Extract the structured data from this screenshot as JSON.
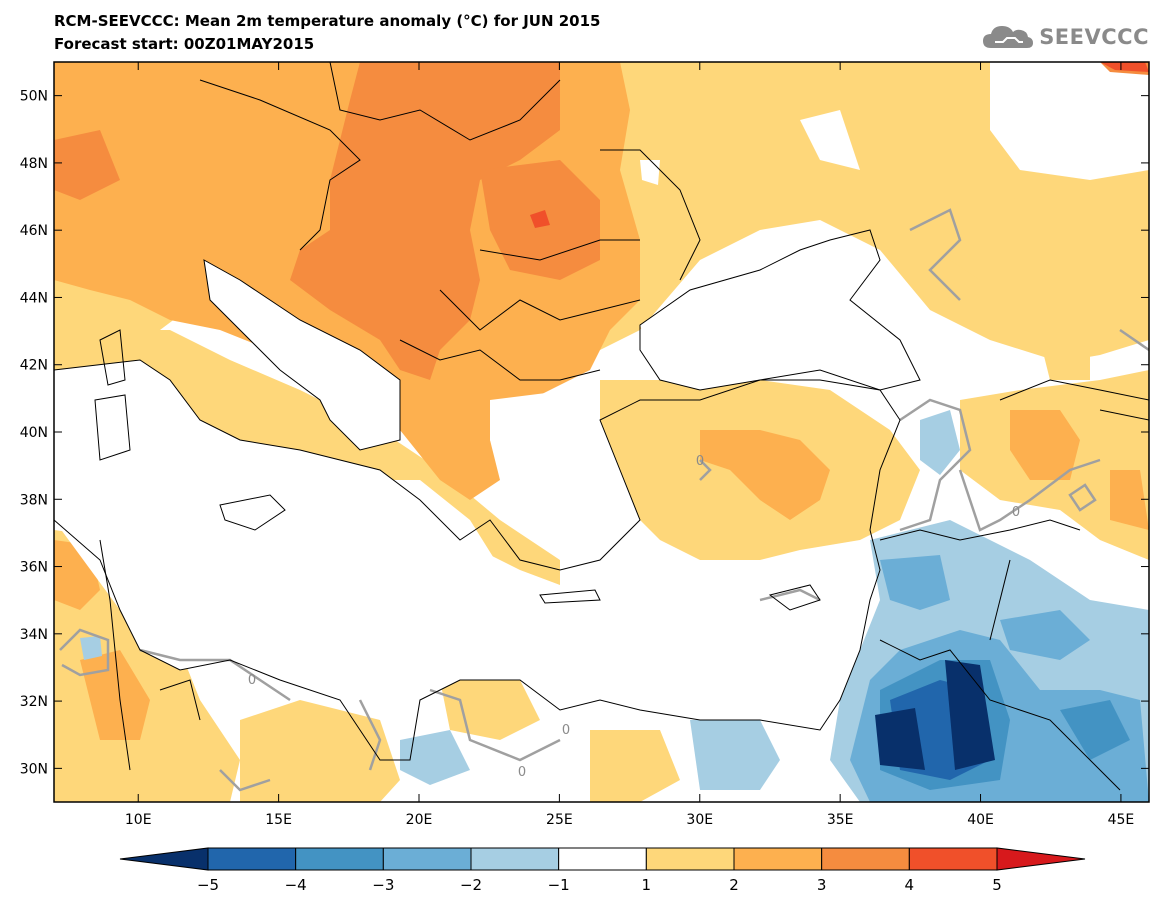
{
  "title": "RCM-SEEVCCC: Mean 2m temperature anomaly (°C) for JUN 2015",
  "subtitle": "Forecast start: 00Z01MAY2015",
  "logo_text": "SEEVCCC",
  "logo_icon": "cloud-icon",
  "map": {
    "lon_range": [
      7,
      46
    ],
    "lat_range": [
      29,
      51
    ],
    "lat_ticks": [
      {
        "value": 50,
        "label": "50N"
      },
      {
        "value": 48,
        "label": "48N"
      },
      {
        "value": 46,
        "label": "46N"
      },
      {
        "value": 44,
        "label": "44N"
      },
      {
        "value": 42,
        "label": "42N"
      },
      {
        "value": 40,
        "label": "40N"
      },
      {
        "value": 38,
        "label": "38N"
      },
      {
        "value": 36,
        "label": "36N"
      },
      {
        "value": 34,
        "label": "34N"
      },
      {
        "value": 32,
        "label": "32N"
      },
      {
        "value": 30,
        "label": "30N"
      }
    ],
    "lon_ticks": [
      {
        "value": 10,
        "label": "10E"
      },
      {
        "value": 15,
        "label": "15E"
      },
      {
        "value": 20,
        "label": "20E"
      },
      {
        "value": 25,
        "label": "25E"
      },
      {
        "value": 30,
        "label": "30E"
      },
      {
        "value": 35,
        "label": "35E"
      },
      {
        "value": 40,
        "label": "40E"
      },
      {
        "value": 45,
        "label": "45E"
      }
    ],
    "zero_contour_labels": [
      "0",
      "0",
      "0",
      "0",
      "0"
    ]
  },
  "colorbar": {
    "labels": [
      "−5",
      "−4",
      "−3",
      "−2",
      "−1",
      "1",
      "2",
      "3",
      "4",
      "5"
    ],
    "bins": [
      {
        "range": "<-5",
        "color": "#08306b"
      },
      {
        "range": "-5..-4",
        "color": "#2166ac"
      },
      {
        "range": "-4..-3",
        "color": "#4393c3"
      },
      {
        "range": "-3..-2",
        "color": "#6baed6"
      },
      {
        "range": "-2..-1",
        "color": "#a6cee3"
      },
      {
        "range": "-1..1",
        "color": "#ffffff"
      },
      {
        "range": "1..2",
        "color": "#fed77a"
      },
      {
        "range": "2..3",
        "color": "#fdb04f"
      },
      {
        "range": "3..4",
        "color": "#f58c3f"
      },
      {
        "range": "4..5",
        "color": "#f0502a"
      },
      {
        "range": ">5",
        "color": "#d7191c"
      }
    ]
  }
}
